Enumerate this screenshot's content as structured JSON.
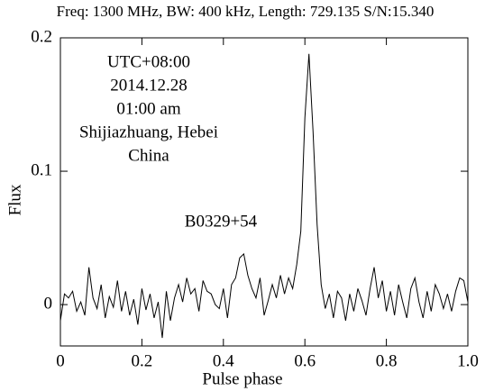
{
  "chart_data": {
    "type": "line",
    "title": "Freq: 1300 MHz, BW: 400 kHz, Length: 729.135 S/N:15.340",
    "xlabel": "Pulse phase",
    "ylabel": "Flux",
    "annotations": [
      "UTC+08:00",
      "2014.12.28",
      "01:00 am",
      "Shijiazhuang, Hebei",
      "China"
    ],
    "source_label": "B0329+54",
    "color": "#000000",
    "xlim": [
      0,
      1
    ],
    "ylim": [
      -0.031,
      0.2
    ],
    "xticks": [
      0,
      0.2,
      0.4,
      0.6,
      0.8,
      {
        "value": 1,
        "label": "1.0"
      }
    ],
    "yticks": [
      0,
      0.1,
      0.2
    ],
    "x": [
      0,
      0.01,
      0.02,
      0.03,
      0.04,
      0.05,
      0.06,
      0.07,
      0.08,
      0.09,
      0.1,
      0.11,
      0.12,
      0.13,
      0.14,
      0.15,
      0.16,
      0.17,
      0.18,
      0.19,
      0.2,
      0.21,
      0.22,
      0.23,
      0.24,
      0.25,
      0.26,
      0.27,
      0.28,
      0.29,
      0.3,
      0.31,
      0.32,
      0.33,
      0.34,
      0.35,
      0.36,
      0.37,
      0.38,
      0.39,
      0.4,
      0.41,
      0.42,
      0.43,
      0.44,
      0.45,
      0.46,
      0.47,
      0.48,
      0.49,
      0.5,
      0.51,
      0.52,
      0.53,
      0.54,
      0.55,
      0.56,
      0.57,
      0.58,
      0.59,
      0.6,
      0.61,
      0.62,
      0.63,
      0.64,
      0.65,
      0.66,
      0.67,
      0.68,
      0.69,
      0.7,
      0.71,
      0.72,
      0.73,
      0.74,
      0.75,
      0.76,
      0.77,
      0.78,
      0.79,
      0.8,
      0.81,
      0.82,
      0.83,
      0.84,
      0.85,
      0.86,
      0.87,
      0.88,
      0.89,
      0.9,
      0.91,
      0.92,
      0.93,
      0.94,
      0.95,
      0.96,
      0.97,
      0.98,
      0.99,
      1
    ],
    "values": [
      -0.012,
      0.008,
      0.005,
      0.01,
      -0.005,
      0.002,
      -0.008,
      0.028,
      0.005,
      -0.003,
      0.015,
      -0.01,
      0.006,
      -0.002,
      0.018,
      -0.005,
      0.01,
      -0.008,
      0.004,
      -0.015,
      0.012,
      -0.004,
      0.008,
      -0.01,
      0.002,
      -0.025,
      0.01,
      -0.012,
      0.005,
      0.015,
      0.002,
      0.02,
      0.008,
      0.012,
      -0.005,
      0.018,
      0.01,
      0.008,
      0,
      -0.003,
      0.012,
      -0.01,
      0.015,
      0.02,
      0.035,
      0.038,
      0.022,
      0.012,
      0.005,
      0.02,
      -0.008,
      0.003,
      0.015,
      0.005,
      0.022,
      0.008,
      0.02,
      0.012,
      0.03,
      0.055,
      0.14,
      0.188,
      0.13,
      0.06,
      0.015,
      -0.003,
      0.008,
      -0.01,
      0.01,
      0.005,
      -0.012,
      0.008,
      -0.005,
      0.012,
      0.003,
      -0.008,
      0.012,
      0.028,
      0.005,
      0.018,
      -0.005,
      0.01,
      -0.008,
      0.015,
      0.002,
      -0.01,
      0.012,
      0.02,
      0.002,
      -0.01,
      0.01,
      -0.005,
      0.015,
      0.008,
      -0.003,
      0.008,
      -0.005,
      0.01,
      0.02,
      0.018,
      0.002
    ]
  }
}
